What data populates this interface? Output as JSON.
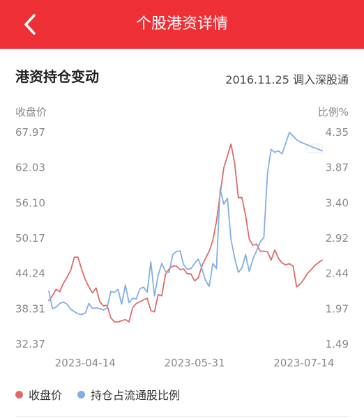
{
  "header": {
    "title": "个股港资详情",
    "back_icon": "chevron-left-icon",
    "bg_color": "#ee2f36"
  },
  "section": {
    "title": "港资持仓变动",
    "meta": "2016.11.25 调入深股通"
  },
  "axis_titles": {
    "left": "收盘价",
    "right": "比例%"
  },
  "watermark_mark": "logo",
  "legend": {
    "items": [
      {
        "label": "收盘价",
        "color": "#e06a6a"
      },
      {
        "label": "持仓占流通股比例",
        "color": "#82aee6"
      }
    ]
  },
  "chart_data": {
    "type": "line",
    "title": "",
    "x": [
      "2023-03-31",
      "2023-04-03",
      "2023-04-04",
      "2023-04-05",
      "2023-04-06",
      "2023-04-07",
      "2023-04-10",
      "2023-04-11",
      "2023-04-12",
      "2023-04-13",
      "2023-04-14",
      "2023-04-17",
      "2023-04-18",
      "2023-04-19",
      "2023-04-20",
      "2023-04-21",
      "2023-04-24",
      "2023-04-25",
      "2023-04-26",
      "2023-04-27",
      "2023-04-28",
      "2023-05-04",
      "2023-05-05",
      "2023-05-08",
      "2023-05-09",
      "2023-05-10",
      "2023-05-11",
      "2023-05-12",
      "2023-05-15",
      "2023-05-16",
      "2023-05-17",
      "2023-05-18",
      "2023-05-19",
      "2023-05-22",
      "2023-05-23",
      "2023-05-24",
      "2023-05-25",
      "2023-05-26",
      "2023-05-29",
      "2023-05-30",
      "2023-05-31",
      "2023-06-01",
      "2023-06-02",
      "2023-06-05",
      "2023-06-06",
      "2023-06-07",
      "2023-06-08",
      "2023-06-09",
      "2023-06-12",
      "2023-06-13",
      "2023-06-14",
      "2023-06-15",
      "2023-06-16",
      "2023-06-19",
      "2023-06-20",
      "2023-06-21",
      "2023-06-26",
      "2023-06-27",
      "2023-06-28",
      "2023-06-29",
      "2023-06-30",
      "2023-07-03",
      "2023-07-04",
      "2023-07-05",
      "2023-07-06",
      "2023-07-07",
      "2023-07-10",
      "2023-07-11",
      "2023-07-12",
      "2023-07-13",
      "2023-07-14",
      "2023-07-17",
      "2023-07-18",
      "2023-07-19",
      "2023-07-20",
      "2023-07-21"
    ],
    "xticks": [
      "2023-04-14",
      "2023-05-31",
      "2023-07-14"
    ],
    "y_left_ticks": [
      "67.97",
      "62.03",
      "56.10",
      "50.17",
      "44.24",
      "38.31",
      "32.37"
    ],
    "y_right_ticks": [
      "4.35",
      "3.87",
      "3.40",
      "2.92",
      "2.44",
      "1.97",
      "1.49"
    ],
    "ylim_left": [
      32.37,
      67.97
    ],
    "ylim_right": [
      1.49,
      4.35
    ],
    "grid": false,
    "legend_position": "bottom-left",
    "series": [
      {
        "name": "收盘价",
        "axis": "left",
        "color": "#e06a6a",
        "values": [
          39.7,
          40.5,
          41.6,
          41.2,
          42.6,
          43.6,
          44.8,
          47.0,
          47.0,
          45.0,
          43.2,
          42.0,
          41.0,
          41.8,
          39.5,
          38.8,
          38.9,
          36.8,
          36.1,
          36.1,
          36.3,
          36.5,
          36.1,
          38.5,
          39.2,
          39.5,
          39.8,
          40.1,
          38.0,
          37.8,
          40.7,
          40.5,
          44.1,
          45.0,
          45.5,
          45.5,
          44.9,
          45.0,
          44.2,
          44.2,
          43.0,
          43.5,
          45.5,
          46.8,
          48.0,
          49.8,
          53.0,
          57.6,
          62.0,
          64.0,
          66.0,
          62.7,
          57.0,
          57.0,
          54.0,
          50.0,
          49.0,
          49.2,
          48.0,
          48.0,
          47.9,
          46.5,
          48.2,
          46.8,
          46.0,
          45.7,
          45.9,
          45.5,
          42.0,
          42.5,
          43.3,
          44.3,
          44.9,
          45.6,
          46.1,
          46.5
        ]
      },
      {
        "name": "持仓占流通股比例",
        "axis": "right",
        "color": "#82aee6",
        "values": [
          2.21,
          1.97,
          1.99,
          2.04,
          2.06,
          2.03,
          1.96,
          1.93,
          1.9,
          1.89,
          1.91,
          2.04,
          1.97,
          1.98,
          1.97,
          1.95,
          1.98,
          2.2,
          2.19,
          2.23,
          2.03,
          2.29,
          2.05,
          2.11,
          2.1,
          2.24,
          2.26,
          2.19,
          2.6,
          2.14,
          2.42,
          2.58,
          2.47,
          2.46,
          2.7,
          2.74,
          2.75,
          2.56,
          2.5,
          2.51,
          2.58,
          2.64,
          2.51,
          2.35,
          2.27,
          2.58,
          2.51,
          3.59,
          3.38,
          3.46,
          2.9,
          2.65,
          2.46,
          2.52,
          2.7,
          2.47,
          2.64,
          2.75,
          2.87,
          2.93,
          3.8,
          4.12,
          4.08,
          4.1,
          4.06,
          4.2,
          4.35,
          4.3,
          4.25,
          4.22,
          4.2,
          4.18,
          4.16,
          4.14,
          4.12,
          4.1
        ]
      }
    ]
  }
}
